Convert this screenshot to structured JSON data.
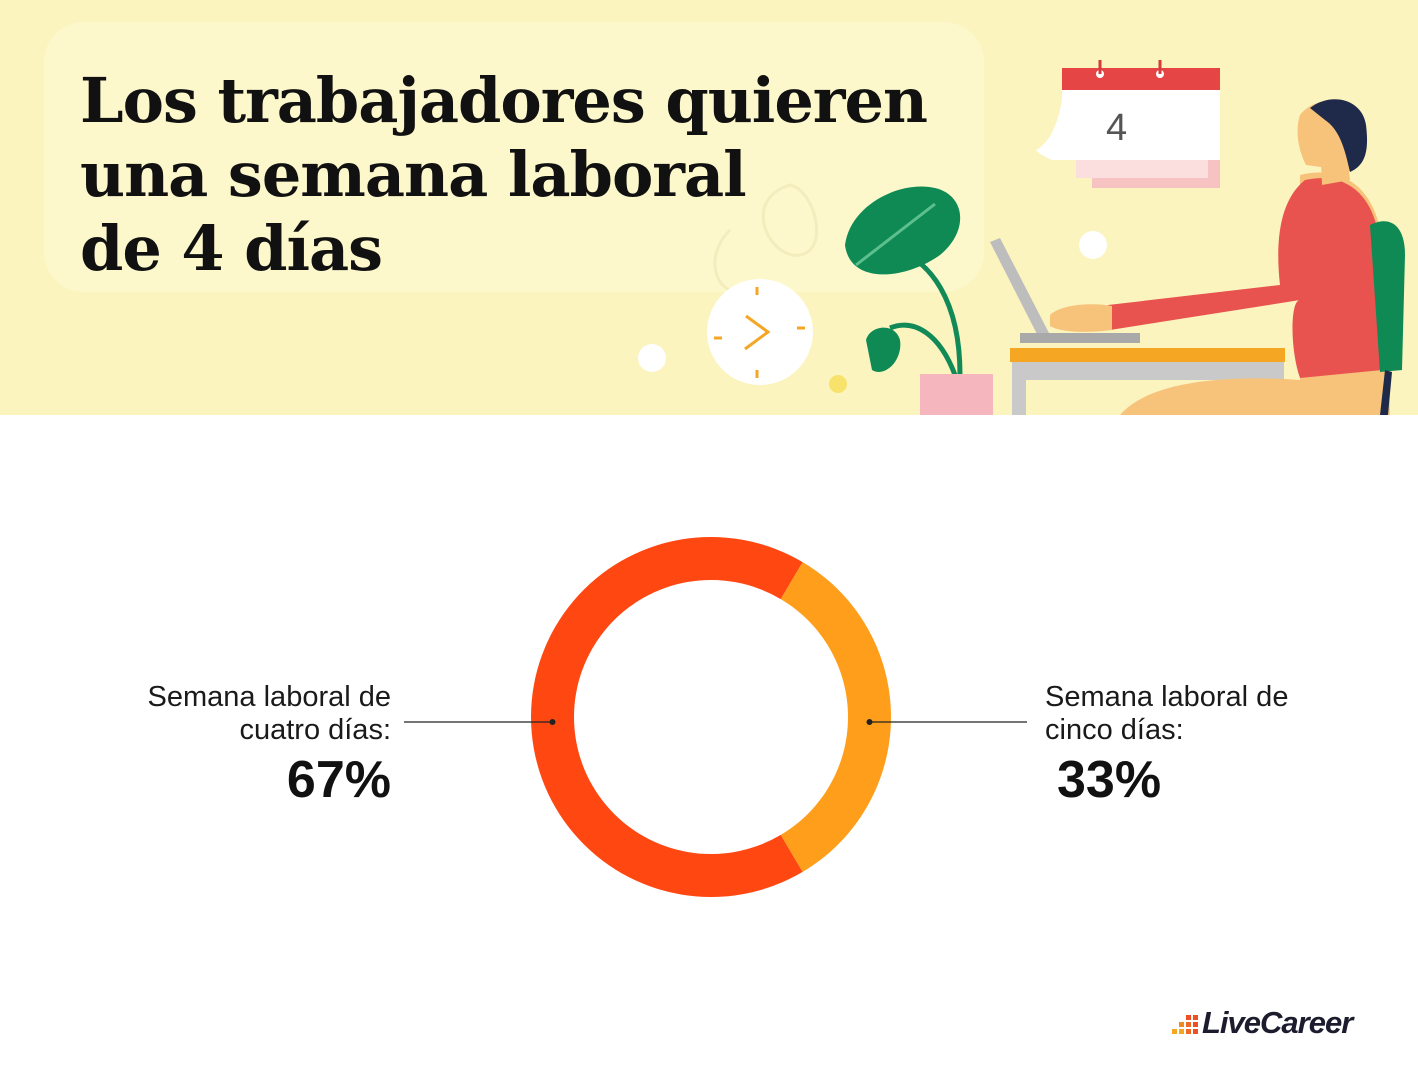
{
  "title": {
    "line1": "Los trabajadores quieren",
    "line2": "una semana laboral",
    "line3": "de 4 días"
  },
  "illustration": {
    "calendar_number": "4",
    "icons": [
      "calendar-icon",
      "clock-icon",
      "plant-icon",
      "laptop-icon",
      "person-icon"
    ]
  },
  "chart_data": {
    "type": "pie",
    "style": "donut",
    "slices": [
      {
        "name_line1": "Semana laboral de",
        "name_line2": "cuatro días:",
        "value": 67,
        "label": "67%",
        "color": "#ff4712"
      },
      {
        "name_line1": "Semana laboral de",
        "name_line2": "cinco días:",
        "value": 33,
        "label": "33%",
        "color": "#ff9e1b"
      }
    ],
    "legend": "none"
  },
  "brand": {
    "name": "LiveCareer",
    "colors": [
      "#f5a623",
      "#f04e23"
    ]
  }
}
